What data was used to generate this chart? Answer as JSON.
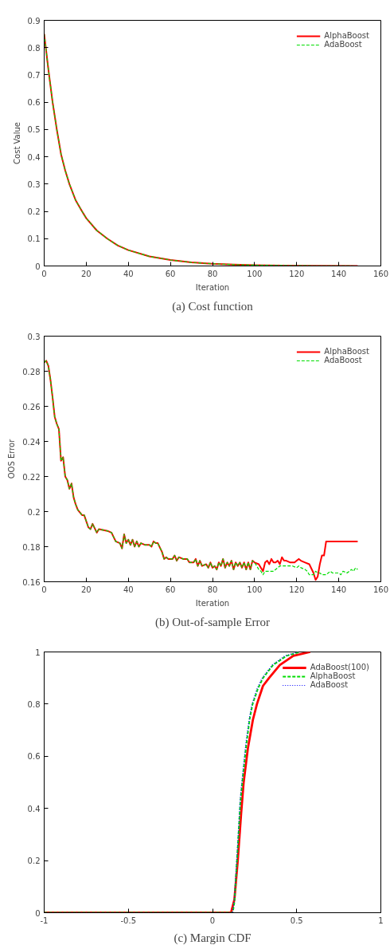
{
  "chart_data": [
    {
      "type": "line",
      "title": "(a) Cost function",
      "xlabel": "Iteration",
      "ylabel": "Cost Value",
      "xlim": [
        0,
        160
      ],
      "ylim": [
        0,
        0.9
      ],
      "xticks": [
        0,
        20,
        40,
        60,
        80,
        100,
        120,
        140,
        160
      ],
      "yticks": [
        0,
        0.1,
        0.2,
        0.3,
        0.4,
        0.5,
        0.6,
        0.7,
        0.8,
        0.9
      ],
      "grid": false,
      "legend": "top right",
      "series": [
        {
          "name": "AlphaBoost",
          "color": "#ff0000",
          "line_style": "solid",
          "x": [
            0,
            2,
            4,
            6,
            8,
            10,
            12,
            15,
            18,
            20,
            25,
            30,
            35,
            40,
            50,
            60,
            70,
            80,
            90,
            100,
            120,
            149
          ],
          "values": [
            0.85,
            0.72,
            0.6,
            0.5,
            0.41,
            0.35,
            0.3,
            0.24,
            0.2,
            0.175,
            0.13,
            0.1,
            0.075,
            0.058,
            0.035,
            0.022,
            0.013,
            0.008,
            0.005,
            0.003,
            0.001,
            0
          ]
        },
        {
          "name": "AdaBoost",
          "color": "#00dd00",
          "line_style": "dashed",
          "x": [
            0,
            2,
            4,
            6,
            8,
            10,
            12,
            15,
            18,
            20,
            25,
            30,
            35,
            40,
            50,
            60,
            70,
            80,
            90,
            100,
            120,
            149
          ],
          "values": [
            0.85,
            0.72,
            0.6,
            0.5,
            0.41,
            0.35,
            0.3,
            0.24,
            0.2,
            0.175,
            0.13,
            0.1,
            0.075,
            0.058,
            0.035,
            0.022,
            0.013,
            0.008,
            0.005,
            0.003,
            0.001,
            0
          ]
        }
      ]
    },
    {
      "type": "line",
      "title": "(b) Out-of-sample Error",
      "xlabel": "Iteration",
      "ylabel": "OOS Error",
      "xlim": [
        0,
        160
      ],
      "ylim": [
        0.16,
        0.3
      ],
      "xticks": [
        0,
        20,
        40,
        60,
        80,
        100,
        120,
        140,
        160
      ],
      "yticks": [
        0.16,
        0.18,
        0.2,
        0.22,
        0.24,
        0.26,
        0.28,
        0.3
      ],
      "grid": false,
      "legend": "top right",
      "series": [
        {
          "name": "AlphaBoost",
          "color": "#ff0000",
          "line_style": "solid",
          "x": [
            0,
            1,
            2,
            3,
            4,
            5,
            6,
            7,
            8,
            9,
            10,
            11,
            12,
            13,
            14,
            15,
            16,
            18,
            19,
            21,
            22,
            23,
            25,
            26,
            30,
            32,
            34,
            36,
            37,
            38,
            39,
            40,
            41,
            42,
            43,
            44,
            45,
            46,
            48,
            50,
            51,
            52,
            53,
            54,
            56,
            57,
            58,
            59,
            61,
            62,
            63,
            64,
            66,
            68,
            69,
            71,
            72,
            73,
            74,
            75,
            77,
            78,
            79,
            80,
            81,
            82,
            83,
            84,
            85,
            86,
            87,
            88,
            89,
            90,
            91,
            92,
            93,
            94,
            95,
            96,
            97,
            98,
            99,
            100,
            102,
            103,
            104,
            105,
            106,
            107,
            108,
            109,
            110,
            111,
            112,
            113,
            114,
            115,
            117,
            119,
            120,
            121,
            122,
            124,
            126,
            128,
            129,
            130,
            131,
            132,
            133,
            134,
            149
          ],
          "values": [
            0.285,
            0.286,
            0.283,
            0.275,
            0.265,
            0.254,
            0.25,
            0.247,
            0.229,
            0.231,
            0.22,
            0.218,
            0.213,
            0.216,
            0.208,
            0.204,
            0.201,
            0.198,
            0.198,
            0.191,
            0.19,
            0.193,
            0.188,
            0.19,
            0.189,
            0.188,
            0.183,
            0.182,
            0.179,
            0.187,
            0.182,
            0.184,
            0.181,
            0.184,
            0.18,
            0.183,
            0.18,
            0.182,
            0.181,
            0.181,
            0.18,
            0.183,
            0.182,
            0.182,
            0.177,
            0.173,
            0.174,
            0.173,
            0.173,
            0.175,
            0.172,
            0.174,
            0.173,
            0.173,
            0.171,
            0.171,
            0.173,
            0.169,
            0.172,
            0.169,
            0.17,
            0.168,
            0.171,
            0.168,
            0.169,
            0.167,
            0.171,
            0.169,
            0.173,
            0.168,
            0.171,
            0.169,
            0.172,
            0.167,
            0.171,
            0.169,
            0.171,
            0.168,
            0.171,
            0.167,
            0.171,
            0.167,
            0.172,
            0.171,
            0.17,
            0.168,
            0.166,
            0.171,
            0.172,
            0.17,
            0.173,
            0.171,
            0.171,
            0.172,
            0.17,
            0.174,
            0.172,
            0.172,
            0.171,
            0.171,
            0.172,
            0.173,
            0.172,
            0.171,
            0.17,
            0.165,
            0.161,
            0.163,
            0.17,
            0.175,
            0.175,
            0.183,
            0.183
          ]
        },
        {
          "name": "AdaBoost",
          "color": "#00dd00",
          "line_style": "dashed",
          "x": [
            0,
            1,
            2,
            3,
            4,
            5,
            6,
            7,
            8,
            9,
            10,
            11,
            12,
            13,
            14,
            15,
            16,
            18,
            19,
            21,
            22,
            23,
            25,
            26,
            30,
            32,
            34,
            36,
            37,
            38,
            39,
            40,
            41,
            42,
            43,
            44,
            45,
            46,
            48,
            50,
            51,
            52,
            53,
            54,
            56,
            57,
            58,
            59,
            61,
            62,
            63,
            64,
            66,
            68,
            69,
            71,
            72,
            73,
            74,
            75,
            77,
            78,
            79,
            80,
            81,
            82,
            83,
            84,
            85,
            86,
            87,
            88,
            89,
            90,
            91,
            92,
            93,
            94,
            95,
            96,
            97,
            98,
            99,
            100,
            101,
            102,
            103,
            104,
            105,
            107,
            109,
            111,
            112,
            114,
            116,
            118,
            120,
            121,
            122,
            124,
            125,
            126,
            128,
            129,
            130,
            131,
            132,
            134,
            135,
            136,
            137,
            138,
            140,
            141,
            142,
            144,
            146,
            147,
            148,
            149
          ],
          "values": [
            0.285,
            0.286,
            0.283,
            0.275,
            0.265,
            0.254,
            0.25,
            0.247,
            0.229,
            0.231,
            0.22,
            0.218,
            0.213,
            0.216,
            0.208,
            0.204,
            0.201,
            0.198,
            0.198,
            0.191,
            0.19,
            0.193,
            0.188,
            0.19,
            0.189,
            0.188,
            0.183,
            0.182,
            0.179,
            0.187,
            0.182,
            0.184,
            0.181,
            0.184,
            0.18,
            0.183,
            0.18,
            0.182,
            0.181,
            0.181,
            0.18,
            0.183,
            0.182,
            0.182,
            0.177,
            0.173,
            0.174,
            0.173,
            0.173,
            0.175,
            0.172,
            0.174,
            0.173,
            0.173,
            0.171,
            0.171,
            0.173,
            0.169,
            0.172,
            0.169,
            0.17,
            0.168,
            0.171,
            0.168,
            0.169,
            0.167,
            0.171,
            0.169,
            0.173,
            0.168,
            0.171,
            0.169,
            0.172,
            0.167,
            0.171,
            0.169,
            0.171,
            0.168,
            0.171,
            0.167,
            0.171,
            0.167,
            0.172,
            0.171,
            0.169,
            0.167,
            0.166,
            0.164,
            0.166,
            0.166,
            0.166,
            0.168,
            0.169,
            0.169,
            0.169,
            0.169,
            0.168,
            0.169,
            0.168,
            0.167,
            0.166,
            0.164,
            0.164,
            0.166,
            0.165,
            0.165,
            0.164,
            0.164,
            0.165,
            0.166,
            0.165,
            0.165,
            0.165,
            0.164,
            0.166,
            0.165,
            0.167,
            0.166,
            0.168,
            0.167
          ]
        }
      ]
    },
    {
      "type": "line",
      "title": "(c) Margin CDF",
      "xlim": [
        -1,
        1
      ],
      "ylim": [
        0,
        1
      ],
      "xticks": [
        -1,
        -0.5,
        0,
        0.5,
        1
      ],
      "yticks": [
        0,
        0.2,
        0.4,
        0.6,
        0.8,
        1
      ],
      "grid": false,
      "legend": "top right",
      "series": [
        {
          "name": "AdaBoost(100)",
          "color": "#ff0000",
          "line_style": "solid",
          "x": [
            -1,
            0.11,
            0.13,
            0.15,
            0.17,
            0.185,
            0.21,
            0.24,
            0.264,
            0.3,
            0.336,
            0.4,
            0.48,
            0.58
          ],
          "values": [
            0,
            0,
            0.05,
            0.2,
            0.38,
            0.5,
            0.63,
            0.74,
            0.8,
            0.87,
            0.9,
            0.95,
            0.985,
            1
          ]
        },
        {
          "name": "AlphaBoost",
          "color": "#00dd00",
          "line_style": "dashed",
          "x": [
            -1,
            0.12,
            0.13,
            0.15,
            0.165,
            0.18,
            0.2,
            0.22,
            0.238,
            0.27,
            0.3,
            0.36,
            0.44,
            0.52
          ],
          "values": [
            0,
            0,
            0.04,
            0.25,
            0.42,
            0.52,
            0.64,
            0.74,
            0.8,
            0.86,
            0.9,
            0.95,
            0.985,
            1
          ]
        },
        {
          "name": "AdaBoost",
          "color": "#0000ff",
          "line_style": "dotted",
          "x": [
            -1,
            0.118,
            0.13,
            0.15,
            0.165,
            0.18,
            0.2,
            0.22,
            0.235,
            0.265,
            0.295,
            0.355,
            0.43,
            0.51
          ],
          "values": [
            0,
            0,
            0.05,
            0.27,
            0.44,
            0.54,
            0.66,
            0.75,
            0.8,
            0.86,
            0.9,
            0.95,
            0.985,
            1
          ]
        }
      ]
    }
  ]
}
